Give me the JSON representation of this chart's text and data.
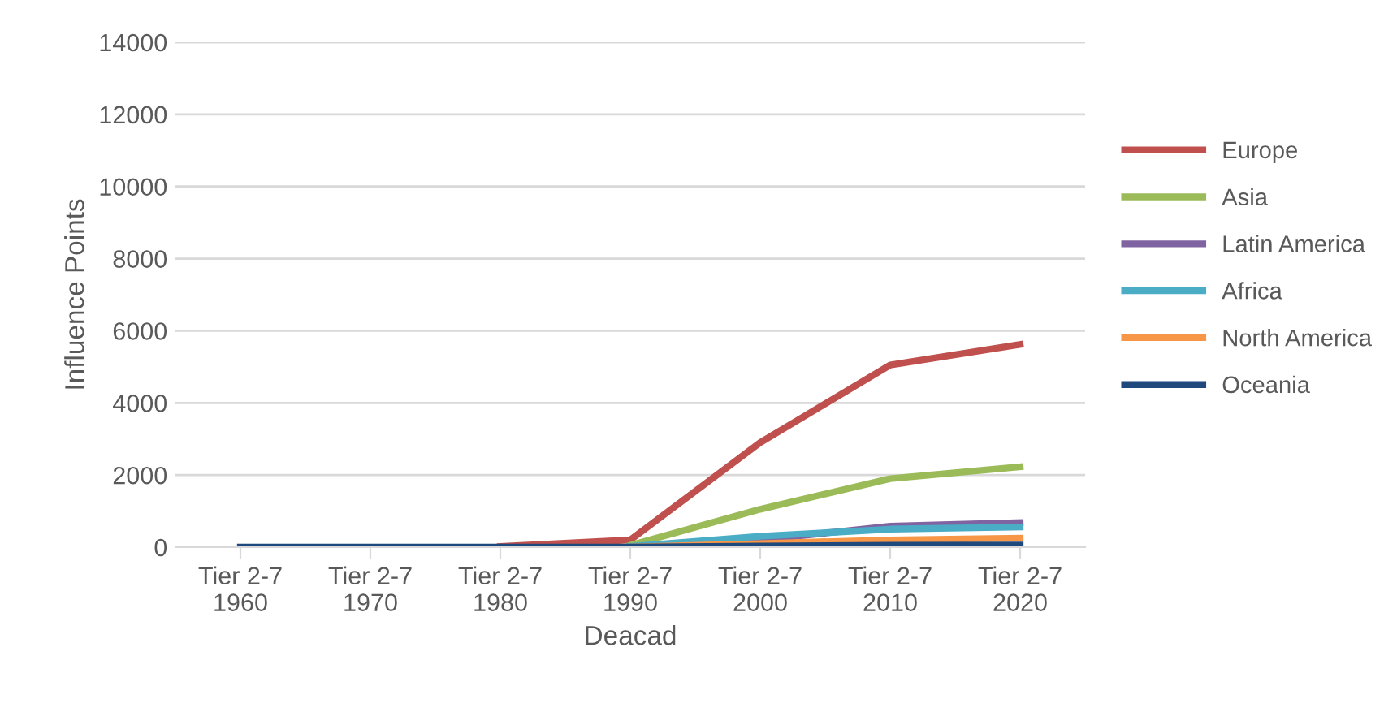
{
  "chart_data": {
    "type": "line",
    "xlabel": "Deacad",
    "ylabel": "Influence Points",
    "categories": [
      "Tier 2-7\n1960",
      "Tier 2-7\n1970",
      "Tier 2-7\n1980",
      "Tier 2-7\n1990",
      "Tier 2-7\n2000",
      "Tier 2-7\n2010",
      "Tier 2-7\n2020"
    ],
    "series": [
      {
        "name": "Europe",
        "color": "#c0504d",
        "values": [
          null,
          null,
          20,
          200,
          2900,
          5050,
          5620
        ]
      },
      {
        "name": "Asia",
        "color": "#9bbb59",
        "values": [
          null,
          null,
          null,
          50,
          1050,
          1900,
          2230
        ]
      },
      {
        "name": "Latin America",
        "color": "#8064a2",
        "values": [
          null,
          null,
          null,
          0,
          200,
          580,
          680
        ]
      },
      {
        "name": "Africa",
        "color": "#4bacc6",
        "values": [
          null,
          null,
          null,
          20,
          300,
          500,
          560
        ]
      },
      {
        "name": "North America",
        "color": "#f79646",
        "values": [
          null,
          null,
          null,
          0,
          100,
          200,
          250
        ]
      },
      {
        "name": "Oceania",
        "color": "#1f497d",
        "values": [
          0,
          0,
          0,
          0,
          30,
          50,
          60
        ]
      }
    ],
    "ylim": [
      0,
      14000
    ],
    "yticks": [
      0,
      2000,
      4000,
      6000,
      8000,
      10000,
      12000,
      14000
    ],
    "grid": "y",
    "legend": "right",
    "marker": "none",
    "line_style": "solid"
  }
}
